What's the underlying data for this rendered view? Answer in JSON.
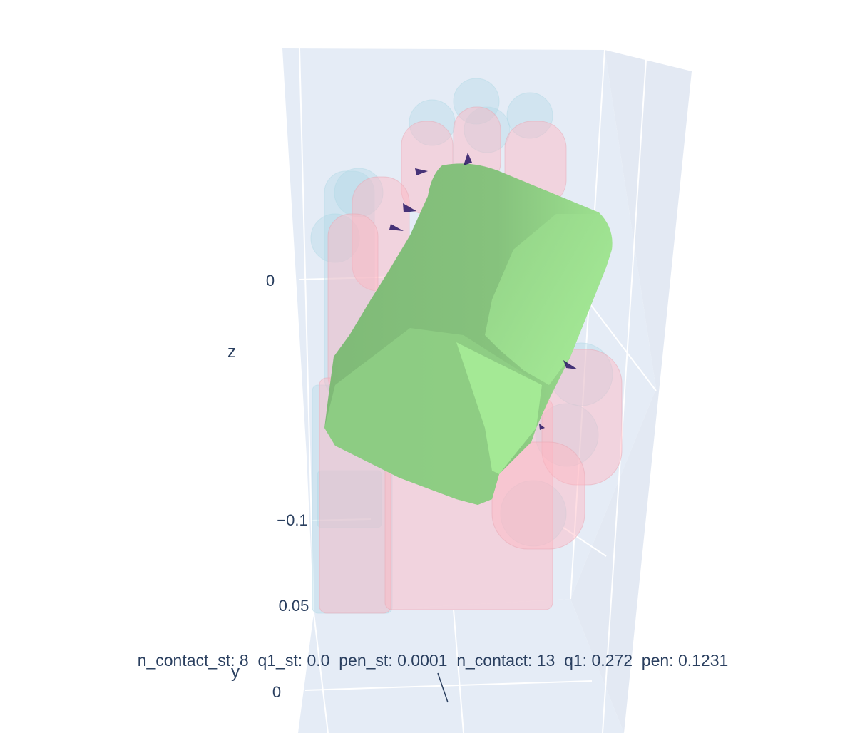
{
  "chart_data": {
    "type": "scatter3d-mesh",
    "title": "",
    "annotation": "n_contact_st: 8  q1_st: 0.0  pen_st: 0.0001  n_contact: 13  q1: 0.272  pen: 0.1231",
    "stats": {
      "n_contact_st": 8,
      "q1_st": 0.0,
      "pen_st": 0.0001,
      "n_contact": 13,
      "q1": 0.272,
      "pen": 0.1231
    },
    "axes": {
      "z": {
        "title": "z",
        "ticks": [
          "0",
          "−0.1"
        ]
      },
      "y": {
        "title": "y",
        "ticks": [
          "0.05",
          "0"
        ]
      }
    },
    "colors": {
      "pane": "#e5ecf6",
      "grid": "#ffffff",
      "object_mesh": "#90ee90",
      "hand_initial": "#add8e6",
      "hand_final": "#ffb6c1",
      "contact_cones": "#1b0a5c",
      "text": "#2a3f5f"
    },
    "meshes": [
      {
        "name": "object",
        "color": "lightgreen"
      },
      {
        "name": "hand-initial-pose",
        "color": "lightblue"
      },
      {
        "name": "hand-final-pose",
        "color": "pink"
      }
    ],
    "grid": true,
    "legend": "none"
  }
}
